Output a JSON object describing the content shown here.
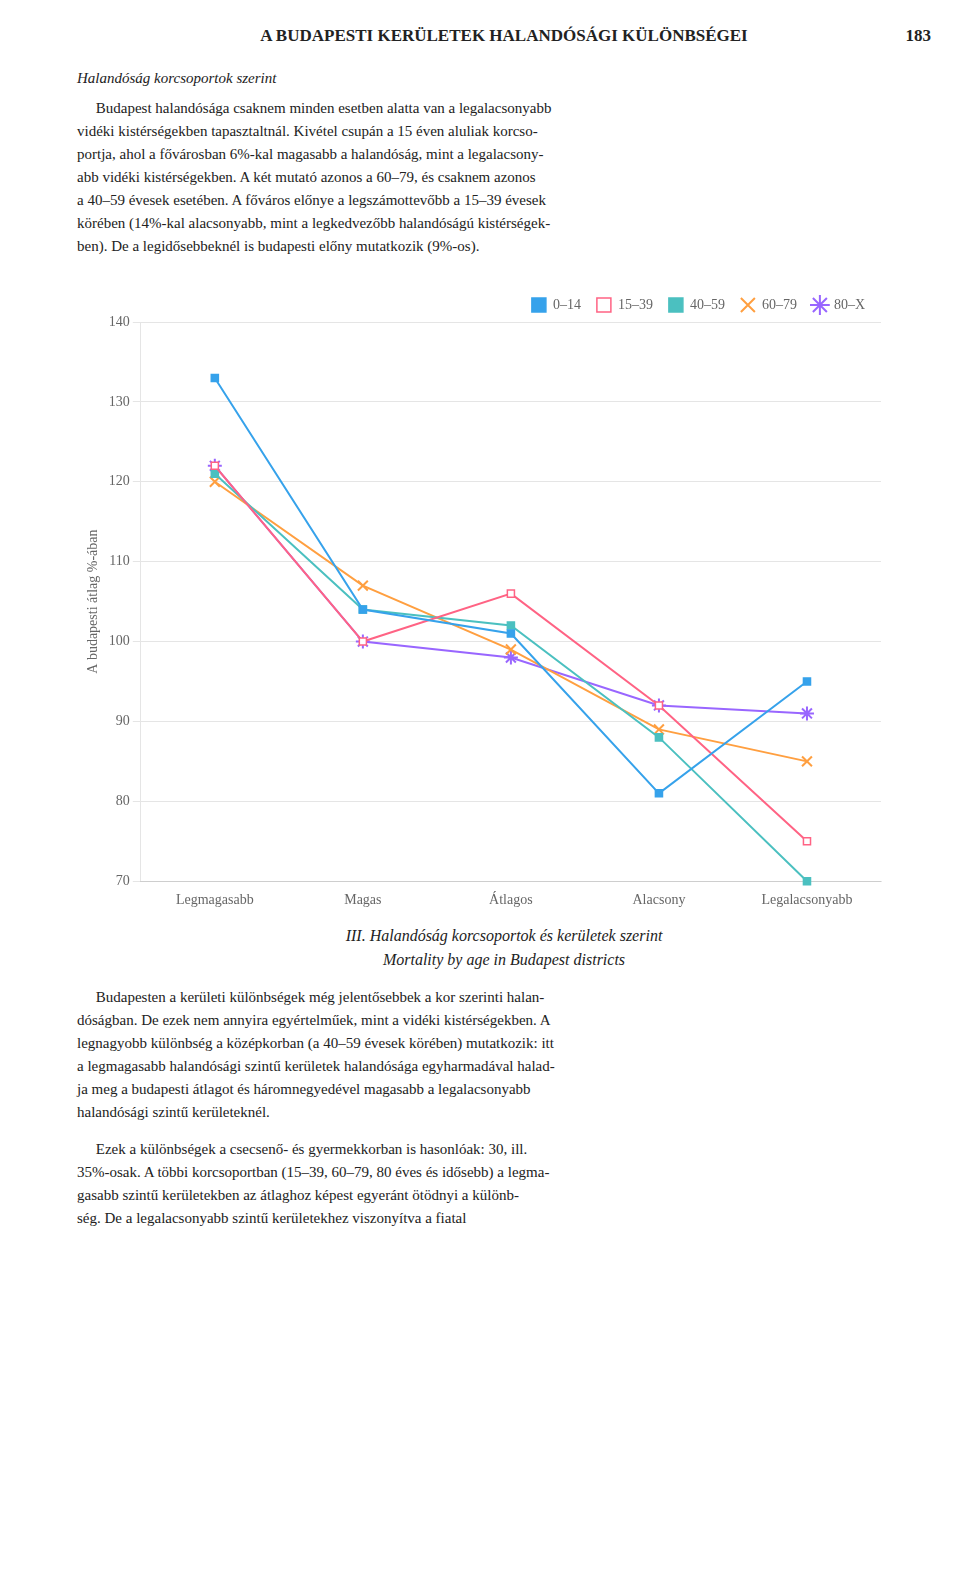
{
  "header": "A BUDAPESTI KERÜLETEK HALANDÓSÁGI KÜLÖNBSÉGEI",
  "page_number": "183",
  "page_subtitle": "Halandóság korcsoportok szerint",
  "paragraphs_before": [
    [
      "     Budapest halandósága csaknem minden esetben alatta van a legalacsonyabb",
      "vidéki kistérségekben tapasztaltnál. Kivétel csupán a 15 éven aluliak korcso-",
      "portja, ahol a fővárosban 6%-kal magasabb a halandóság, mint a legalacsony-",
      "abb vidéki kistérségekben. A két mutató azonos a 60–79, és csaknem azonos",
      "a 40–59 évesek esetében. A főváros előnye a legszámottevőbb a 15–39 évesek",
      "körében (14%-kal alacsonyabb, mint a legkedvezőbb halandóságú kistérségek-",
      "ben). De a legidősebbeknél is budapesti előny mutatkozik (9%-os)."
    ]
  ],
  "paragraphs_after": [
    [
      "     Budapesten a kerületi különbségek még jelentősebbek a kor szerinti halan-",
      "dóságban. De ezek nem annyira egyértelműek, mint a vidéki kistérségekben. A",
      "legnagyobb különbség a középkorban (a 40–59 évesek körében) mutatkozik: itt",
      "a legmagasabb halandósági szintű kerületek halandósága egyharmadával halad-",
      "ja meg a budapesti átlagot és háromnegyedével magasabb a legalacsonyabb",
      "halandósági szintű kerületeknél."
    ],
    [
      "     Ezek a különbségek a csecsenő- és gyermekkorban is hasonlóak: 30, ill.",
      "35%-osak. A többi korcsoportban (15–39, 60–79, 80 éves és idősebb) a legma-",
      "gasabb szintű kerületekben az átlaghoz képest egyeránt ötödnyi a különb-",
      "ség. De a legalacsonyabb szintű kerületekhez viszonyítva a fiatal"
    ]
  ],
  "chart_data": {
    "type": "line",
    "title": "III. Halandóság korcsoportok és kerületek szerint",
    "subtitle": "Mortality by age in Budapest districts",
    "categories": [
      "Legmagasabb",
      "Magas",
      "Átlagos",
      "Alacsony",
      "Legalacsonyabb"
    ],
    "series": [
      {
        "name": "0–14",
        "marker": "square",
        "values": [
          133,
          104,
          101,
          81,
          95
        ]
      },
      {
        "name": "15–39",
        "marker": "open_square",
        "values": [
          122,
          100,
          106,
          92,
          75
        ]
      },
      {
        "name": "40–59",
        "marker": "square",
        "values": [
          121,
          104,
          102,
          88,
          70
        ]
      },
      {
        "name": "60–79",
        "marker": "x",
        "values": [
          120,
          107,
          99,
          89,
          85
        ]
      },
      {
        "name": "80–X",
        "marker": "star",
        "values": [
          122,
          100,
          98,
          92,
          91
        ]
      }
    ],
    "ylabel": "A budapesti átlag %-ában",
    "ylim": [
      70,
      140
    ],
    "yticks": [
      70,
      80,
      90,
      100,
      110,
      120,
      130,
      140
    ],
    "grid": true,
    "legend": "upper right"
  }
}
